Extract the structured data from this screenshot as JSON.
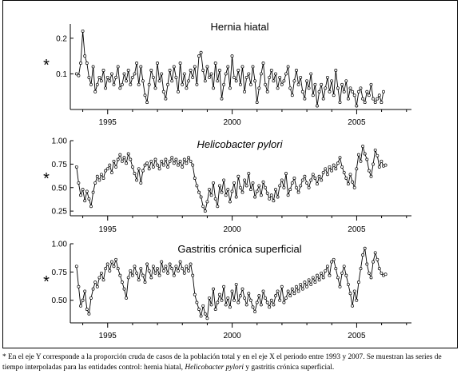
{
  "chart_data": [
    {
      "type": "line",
      "title": "Hernia hiatal",
      "title_style": "normal",
      "axis_marker": "*",
      "xlim": [
        1993.5,
        2007.2
      ],
      "ylim": [
        0.0,
        0.24
      ],
      "y_ticks": [
        0.1,
        0.2
      ],
      "y_tick_labels": [
        "0.1",
        "0.2"
      ],
      "x_ticks": [
        1995,
        2000,
        2005
      ],
      "x_tick_labels": [
        "1995",
        "2000",
        "2005"
      ],
      "series": [
        {
          "start": 1993.75,
          "step": 0.0833,
          "values": [
            0.1,
            0.095,
            0.13,
            0.22,
            0.15,
            0.13,
            0.09,
            0.07,
            0.12,
            0.05,
            0.07,
            0.09,
            0.08,
            0.11,
            0.06,
            0.09,
            0.08,
            0.1,
            0.07,
            0.09,
            0.12,
            0.06,
            0.07,
            0.1,
            0.08,
            0.11,
            0.07,
            0.09,
            0.1,
            0.13,
            0.07,
            0.12,
            0.08,
            0.04,
            0.02,
            0.07,
            0.11,
            0.09,
            0.06,
            0.13,
            0.08,
            0.1,
            0.05,
            0.03,
            0.07,
            0.11,
            0.08,
            0.12,
            0.09,
            0.05,
            0.13,
            0.07,
            0.1,
            0.06,
            0.08,
            0.11,
            0.09,
            0.12,
            0.07,
            0.15,
            0.16,
            0.11,
            0.08,
            0.12,
            0.09,
            0.1,
            0.06,
            0.13,
            0.08,
            0.11,
            0.03,
            0.07,
            0.1,
            0.12,
            0.06,
            0.15,
            0.09,
            0.08,
            0.11,
            0.07,
            0.12,
            0.05,
            0.09,
            0.1,
            0.07,
            0.12,
            0.08,
            0.02,
            0.06,
            0.1,
            0.13,
            0.07,
            0.05,
            0.09,
            0.11,
            0.08,
            0.1,
            0.06,
            0.09,
            0.07,
            0.08,
            0.1,
            0.12,
            0.06,
            0.04,
            0.08,
            0.11,
            0.07,
            0.09,
            0.05,
            0.03,
            0.08,
            0.06,
            0.1,
            0.04,
            0.07,
            0.01,
            0.05,
            0.07,
            0.03,
            0.06,
            0.09,
            0.05,
            0.08,
            0.04,
            0.11,
            0.06,
            0.02,
            0.07,
            0.05,
            0.08,
            0.03,
            0.06,
            0.05,
            0.04,
            0.01,
            0.05,
            0.06,
            0.03,
            0.02,
            0.05,
            0.04,
            0.07,
            0.03,
            0.02,
            0.03,
            0.04,
            0.02,
            0.05
          ]
        }
      ]
    },
    {
      "type": "line",
      "title": "Helicobacter pylori",
      "title_style": "italic",
      "axis_marker": "*",
      "xlim": [
        1993.5,
        2007.2
      ],
      "ylim": [
        0.2,
        1.0
      ],
      "y_ticks": [
        0.25,
        0.5,
        0.75,
        1.0
      ],
      "y_tick_labels": [
        "0.25",
        "0.50",
        "0.75",
        "1.00"
      ],
      "x_ticks": [
        1995,
        2000,
        2005
      ],
      "x_tick_labels": [
        "1995",
        "2000",
        "2005"
      ],
      "series": [
        {
          "start": 1993.75,
          "step": 0.0833,
          "values": [
            0.72,
            0.55,
            0.42,
            0.48,
            0.36,
            0.46,
            0.38,
            0.3,
            0.45,
            0.55,
            0.62,
            0.58,
            0.64,
            0.6,
            0.68,
            0.7,
            0.74,
            0.66,
            0.78,
            0.72,
            0.8,
            0.85,
            0.78,
            0.82,
            0.76,
            0.86,
            0.8,
            0.72,
            0.65,
            0.58,
            0.7,
            0.55,
            0.68,
            0.74,
            0.76,
            0.7,
            0.78,
            0.72,
            0.8,
            0.74,
            0.7,
            0.78,
            0.74,
            0.8,
            0.72,
            0.78,
            0.82,
            0.76,
            0.8,
            0.74,
            0.78,
            0.72,
            0.8,
            0.76,
            0.82,
            0.78,
            0.74,
            0.6,
            0.52,
            0.45,
            0.4,
            0.3,
            0.25,
            0.35,
            0.48,
            0.42,
            0.55,
            0.38,
            0.3,
            0.52,
            0.45,
            0.58,
            0.42,
            0.48,
            0.35,
            0.46,
            0.55,
            0.4,
            0.62,
            0.5,
            0.45,
            0.58,
            0.52,
            0.65,
            0.48,
            0.55,
            0.4,
            0.46,
            0.52,
            0.42,
            0.56,
            0.5,
            0.44,
            0.38,
            0.42,
            0.36,
            0.48,
            0.4,
            0.52,
            0.58,
            0.5,
            0.65,
            0.42,
            0.48,
            0.55,
            0.6,
            0.5,
            0.45,
            0.52,
            0.58,
            0.62,
            0.55,
            0.5,
            0.58,
            0.64,
            0.6,
            0.54,
            0.62,
            0.58,
            0.66,
            0.7,
            0.64,
            0.72,
            0.68,
            0.74,
            0.7,
            0.76,
            0.82,
            0.72,
            0.66,
            0.6,
            0.54,
            0.64,
            0.56,
            0.5,
            0.7,
            0.85,
            0.78,
            0.94,
            0.86,
            0.8,
            0.68,
            0.62,
            0.75,
            0.9,
            0.84,
            0.72,
            0.78,
            0.73,
            0.74
          ]
        }
      ]
    },
    {
      "type": "line",
      "title": "Gastritis crónica superficial",
      "title_style": "normal",
      "axis_marker": "*",
      "xlim": [
        1993.5,
        2007.2
      ],
      "ylim": [
        0.3,
        1.0
      ],
      "y_ticks": [
        0.5,
        0.75,
        1.0
      ],
      "y_tick_labels": [
        "0.50",
        "0.75",
        "1.00"
      ],
      "x_ticks": [
        1995,
        2000,
        2005
      ],
      "x_tick_labels": [
        "1995",
        "2000",
        "2005"
      ],
      "series": [
        {
          "start": 1993.75,
          "step": 0.0833,
          "values": [
            0.8,
            0.62,
            0.45,
            0.5,
            0.58,
            0.42,
            0.38,
            0.52,
            0.6,
            0.66,
            0.62,
            0.7,
            0.74,
            0.68,
            0.78,
            0.82,
            0.76,
            0.84,
            0.8,
            0.86,
            0.78,
            0.72,
            0.66,
            0.6,
            0.52,
            0.7,
            0.76,
            0.72,
            0.8,
            0.74,
            0.68,
            0.78,
            0.72,
            0.66,
            0.82,
            0.76,
            0.7,
            0.8,
            0.74,
            0.78,
            0.72,
            0.84,
            0.76,
            0.8,
            0.74,
            0.82,
            0.78,
            0.72,
            0.8,
            0.76,
            0.84,
            0.78,
            0.74,
            0.8,
            0.76,
            0.82,
            0.72,
            0.55,
            0.48,
            0.42,
            0.36,
            0.45,
            0.38,
            0.34,
            0.52,
            0.46,
            0.6,
            0.42,
            0.48,
            0.55,
            0.5,
            0.62,
            0.46,
            0.52,
            0.44,
            0.58,
            0.5,
            0.64,
            0.48,
            0.54,
            0.6,
            0.52,
            0.46,
            0.56,
            0.5,
            0.44,
            0.4,
            0.48,
            0.54,
            0.46,
            0.58,
            0.52,
            0.48,
            0.44,
            0.5,
            0.46,
            0.54,
            0.58,
            0.5,
            0.62,
            0.48,
            0.52,
            0.58,
            0.54,
            0.6,
            0.56,
            0.62,
            0.58,
            0.64,
            0.6,
            0.66,
            0.62,
            0.68,
            0.64,
            0.7,
            0.66,
            0.72,
            0.68,
            0.74,
            0.7,
            0.76,
            0.8,
            0.72,
            0.84,
            0.86,
            0.78,
            0.7,
            0.62,
            0.74,
            0.8,
            0.72,
            0.64,
            0.56,
            0.45,
            0.58,
            0.5,
            0.66,
            0.78,
            0.9,
            0.96,
            0.82,
            0.74,
            0.7,
            0.84,
            0.92,
            0.86,
            0.78,
            0.74,
            0.72,
            0.73
          ]
        }
      ]
    }
  ],
  "footnote": {
    "part1": "* En el eje Y corresponde a la proporción cruda de casos de la población total y en el eje X el periodo entre 1993 y 2007. Se muestran las series de tiempo interpoladas para las entidades control: hernia hiatal, ",
    "italic": "Helicobacter pylori",
    "part2": " y gastritis crónica superficial."
  }
}
